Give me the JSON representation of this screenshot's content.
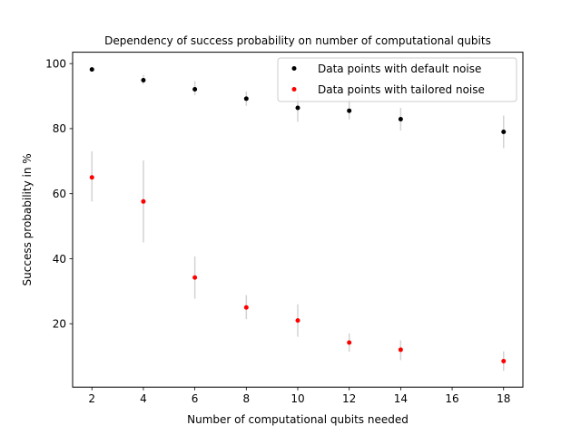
{
  "chart_data": {
    "type": "scatter",
    "title": "Dependency of success probability on number of computational qubits",
    "xlabel": "Number of computational qubits needed",
    "ylabel": "Success probability in %",
    "xlim": [
      1.25,
      18.75
    ],
    "ylim": [
      0.5,
      103.5
    ],
    "xticks": [
      2,
      4,
      6,
      8,
      10,
      12,
      14,
      16,
      18
    ],
    "yticks": [
      20,
      40,
      60,
      80,
      100
    ],
    "grid": false,
    "legend_position": "top-right",
    "errorbar_color": "#d3d3d3",
    "series": [
      {
        "name": "Data points with default noise",
        "color": "#000000",
        "x": [
          2,
          4,
          6,
          8,
          10,
          12,
          14,
          18
        ],
        "y": [
          98.2,
          94.9,
          92.1,
          89.2,
          86.4,
          85.5,
          82.9,
          79.0
        ],
        "err_low": [
          0.4,
          1.2,
          1.8,
          2.2,
          4.3,
          2.7,
          3.5,
          5.0
        ],
        "err_high": [
          0.4,
          1.6,
          2.5,
          2.2,
          4.4,
          3.9,
          3.5,
          5.0
        ]
      },
      {
        "name": "Data points with tailored noise",
        "color": "#ff0000",
        "x": [
          2,
          4,
          6,
          8,
          10,
          12,
          14,
          18
        ],
        "y": [
          65.0,
          57.6,
          34.2,
          25.0,
          21.0,
          14.2,
          12.0,
          8.5
        ],
        "err_low": [
          7.4,
          12.6,
          6.5,
          3.6,
          5.0,
          2.8,
          3.2,
          3.0
        ],
        "err_high": [
          8.0,
          12.6,
          6.5,
          3.8,
          5.0,
          2.8,
          2.9,
          3.0
        ]
      }
    ]
  }
}
